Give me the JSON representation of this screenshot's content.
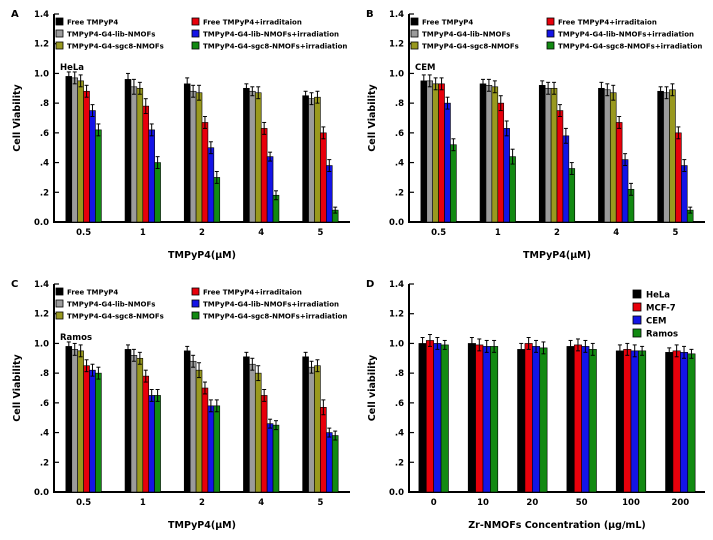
{
  "figure": {
    "background": "#ffffff"
  },
  "colors": {
    "black": "#000000",
    "gray": "#9b9b9b",
    "olive": "#99991f",
    "red": "#e8000b",
    "blue": "#1414e6",
    "green": "#128a12"
  },
  "y_ticks": [
    "0.0",
    ".2",
    ".4",
    ".6",
    ".8",
    "1.0",
    "1.2",
    "1.4"
  ],
  "chart_data": [
    {
      "type": "bar",
      "panel": "A",
      "cell_line": "HeLa",
      "xlabel": "TMPyP4(μM)",
      "ylabel": "Cell Viability",
      "ylim": [
        0,
        1.4
      ],
      "grid": false,
      "legend": {
        "layout": "two-column",
        "columns": [
          [
            0,
            1,
            2
          ],
          [
            3,
            4,
            5
          ]
        ],
        "position": "top-left"
      },
      "categories": [
        "0.5",
        "1",
        "2",
        "4",
        "5"
      ],
      "series": [
        {
          "name": "Free TMPyP4",
          "color": "black",
          "values": [
            0.98,
            0.96,
            0.93,
            0.9,
            0.85
          ],
          "errors": [
            0.03,
            0.04,
            0.04,
            0.03,
            0.03
          ]
        },
        {
          "name": "TMPyP4-G4-lib-NMOFs",
          "color": "gray",
          "values": [
            0.97,
            0.91,
            0.88,
            0.88,
            0.83
          ],
          "errors": [
            0.04,
            0.05,
            0.04,
            0.03,
            0.04
          ]
        },
        {
          "name": "TMPyP4-G4-sgc8-NMOFs",
          "color": "olive",
          "values": [
            0.95,
            0.9,
            0.87,
            0.87,
            0.84
          ],
          "errors": [
            0.04,
            0.04,
            0.05,
            0.04,
            0.04
          ]
        },
        {
          "name": "Free TMPyP4+irraditaion",
          "color": "red",
          "values": [
            0.88,
            0.78,
            0.67,
            0.63,
            0.6
          ],
          "errors": [
            0.04,
            0.05,
            0.04,
            0.04,
            0.04
          ]
        },
        {
          "name": "TMPyP4-G4-lib-NMOFs+irradiation",
          "color": "blue",
          "values": [
            0.75,
            0.62,
            0.5,
            0.44,
            0.38
          ],
          "errors": [
            0.04,
            0.04,
            0.04,
            0.03,
            0.04
          ]
        },
        {
          "name": "TMPyP4-G4-sgc8-NMOFs+irradiation",
          "color": "green",
          "values": [
            0.62,
            0.4,
            0.3,
            0.18,
            0.08
          ],
          "errors": [
            0.04,
            0.04,
            0.04,
            0.03,
            0.02
          ]
        }
      ]
    },
    {
      "type": "bar",
      "panel": "B",
      "cell_line": "CEM",
      "xlabel": "TMPyP4(μM)",
      "ylabel": "Cell Viability",
      "ylim": [
        0,
        1.4
      ],
      "grid": false,
      "legend": {
        "layout": "two-column",
        "columns": [
          [
            0,
            1,
            2
          ],
          [
            3,
            4,
            5
          ]
        ],
        "position": "top-left"
      },
      "categories": [
        "0.5",
        "1",
        "2",
        "4",
        "5"
      ],
      "series": [
        {
          "name": "Free TMPyP4",
          "color": "black",
          "values": [
            0.95,
            0.93,
            0.92,
            0.9,
            0.88
          ],
          "errors": [
            0.04,
            0.03,
            0.03,
            0.04,
            0.03
          ]
        },
        {
          "name": "TMPyP4-G4-lib-NMOFs",
          "color": "gray",
          "values": [
            0.95,
            0.92,
            0.9,
            0.89,
            0.87
          ],
          "errors": [
            0.04,
            0.04,
            0.04,
            0.04,
            0.04
          ]
        },
        {
          "name": "TMPyP4-G4-sgc8-NMOFs",
          "color": "olive",
          "values": [
            0.93,
            0.91,
            0.9,
            0.87,
            0.89
          ],
          "errors": [
            0.04,
            0.04,
            0.04,
            0.05,
            0.04
          ]
        },
        {
          "name": "Free TMPyP4+irraditaion",
          "color": "red",
          "values": [
            0.93,
            0.8,
            0.75,
            0.67,
            0.6
          ],
          "errors": [
            0.04,
            0.05,
            0.04,
            0.04,
            0.04
          ]
        },
        {
          "name": "TMPyP4-G4-lib-NMOFs+irradiation",
          "color": "blue",
          "values": [
            0.8,
            0.63,
            0.58,
            0.42,
            0.38
          ],
          "errors": [
            0.04,
            0.05,
            0.05,
            0.04,
            0.04
          ]
        },
        {
          "name": "TMPyP4-G4-sgc8-NMOFs+irradiation",
          "color": "green",
          "values": [
            0.52,
            0.44,
            0.36,
            0.22,
            0.08
          ],
          "errors": [
            0.04,
            0.05,
            0.04,
            0.04,
            0.02
          ]
        }
      ]
    },
    {
      "type": "bar",
      "panel": "C",
      "cell_line": "Ramos",
      "xlabel": "TMPyP4(μM)",
      "ylabel": "Cell Viability",
      "ylim": [
        0,
        1.4
      ],
      "grid": false,
      "legend": {
        "layout": "two-column",
        "columns": [
          [
            0,
            1,
            2
          ],
          [
            3,
            4,
            5
          ]
        ],
        "position": "top-left"
      },
      "categories": [
        "0.5",
        "1",
        "2",
        "4",
        "5"
      ],
      "series": [
        {
          "name": "Free TMPyP4",
          "color": "black",
          "values": [
            0.98,
            0.96,
            0.95,
            0.91,
            0.91
          ],
          "errors": [
            0.03,
            0.03,
            0.03,
            0.03,
            0.03
          ]
        },
        {
          "name": "TMPyP4-G4-lib-NMOFs",
          "color": "gray",
          "values": [
            0.96,
            0.92,
            0.88,
            0.86,
            0.84
          ],
          "errors": [
            0.04,
            0.04,
            0.04,
            0.04,
            0.04
          ]
        },
        {
          "name": "TMPyP4-G4-sgc8-NMOFs",
          "color": "olive",
          "values": [
            0.95,
            0.9,
            0.82,
            0.8,
            0.85
          ],
          "errors": [
            0.04,
            0.04,
            0.05,
            0.05,
            0.04
          ]
        },
        {
          "name": "Free TMPyP4+irraditaion",
          "color": "red",
          "values": [
            0.85,
            0.78,
            0.7,
            0.65,
            0.57
          ],
          "errors": [
            0.04,
            0.04,
            0.04,
            0.04,
            0.05
          ]
        },
        {
          "name": "TMPyP4-G4-lib-NMOFs+irradiation",
          "color": "blue",
          "values": [
            0.82,
            0.65,
            0.58,
            0.46,
            0.4
          ],
          "errors": [
            0.04,
            0.04,
            0.04,
            0.03,
            0.03
          ]
        },
        {
          "name": "TMPyP4-G4-sgc8-NMOFs+irradiation",
          "color": "green",
          "values": [
            0.8,
            0.65,
            0.58,
            0.45,
            0.38
          ],
          "errors": [
            0.04,
            0.04,
            0.04,
            0.03,
            0.03
          ]
        }
      ]
    },
    {
      "type": "bar",
      "panel": "D",
      "cell_line": "",
      "xlabel": "Zr-NMOFs Concentration (μg/mL)",
      "ylabel": "Cell viability",
      "ylim": [
        0,
        1.4
      ],
      "grid": false,
      "legend": {
        "layout": "right",
        "columns": [
          [
            0,
            1,
            2,
            3
          ]
        ],
        "position": "top-right"
      },
      "categories": [
        "0",
        "10",
        "20",
        "50",
        "100",
        "200"
      ],
      "series": [
        {
          "name": "HeLa",
          "color": "black",
          "values": [
            1.0,
            1.0,
            0.96,
            0.98,
            0.95,
            0.94
          ],
          "errors": [
            0.04,
            0.04,
            0.04,
            0.04,
            0.04,
            0.03
          ]
        },
        {
          "name": "MCF-7",
          "color": "red",
          "values": [
            1.02,
            0.99,
            1.0,
            0.99,
            0.96,
            0.95
          ],
          "errors": [
            0.04,
            0.04,
            0.04,
            0.04,
            0.04,
            0.04
          ]
        },
        {
          "name": "CEM",
          "color": "blue",
          "values": [
            1.0,
            0.98,
            0.98,
            0.98,
            0.95,
            0.94
          ],
          "errors": [
            0.04,
            0.04,
            0.04,
            0.04,
            0.04,
            0.04
          ]
        },
        {
          "name": "Ramos",
          "color": "green",
          "values": [
            0.99,
            0.98,
            0.97,
            0.96,
            0.95,
            0.93
          ],
          "errors": [
            0.03,
            0.04,
            0.04,
            0.04,
            0.03,
            0.03
          ]
        }
      ]
    }
  ]
}
